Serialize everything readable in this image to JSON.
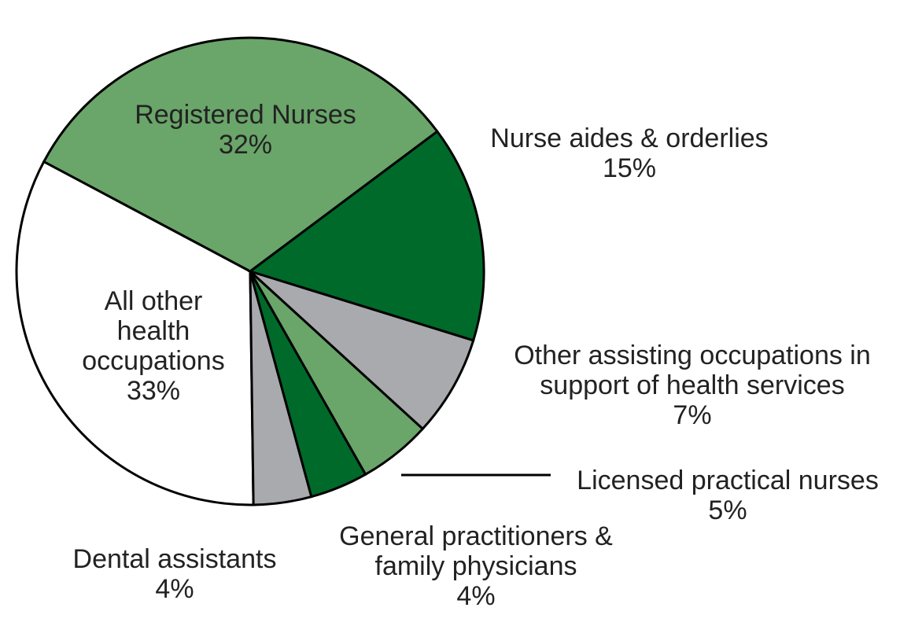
{
  "chart_data": {
    "type": "pie",
    "categories": [
      "Registered Nurses",
      "Nurse aides & orderlies",
      "Other assisting occupations in support of health services",
      "Licensed practical nurses",
      "General practitioners & family physicians",
      "Dental assistants",
      "All other health occupations"
    ],
    "values": [
      32,
      15,
      7,
      5,
      4,
      4,
      33
    ],
    "value_labels": [
      "32%",
      "15%",
      "7%",
      "5%",
      "4%",
      "4%",
      "33%"
    ],
    "colors": [
      "#6aa56a",
      "#006a2a",
      "#a9aaad",
      "#6aa56a",
      "#006a2a",
      "#a9aaad",
      "#ffffff"
    ]
  }
}
